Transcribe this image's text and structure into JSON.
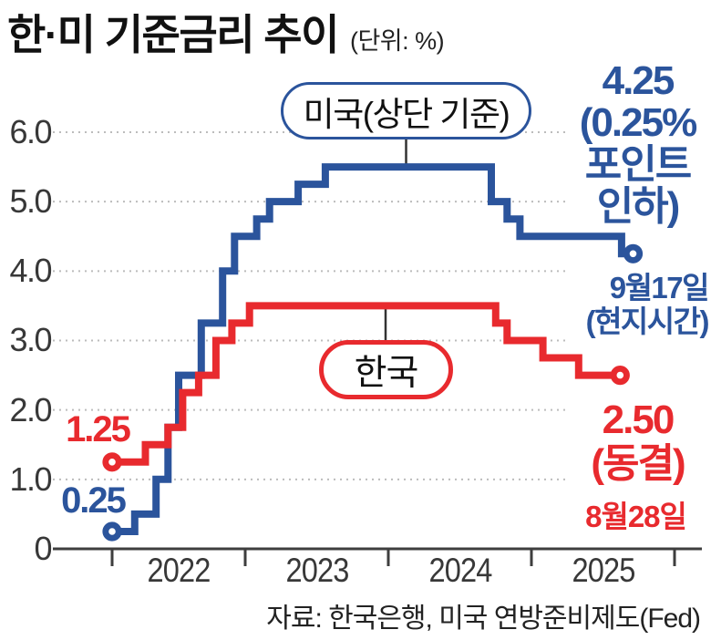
{
  "title": "한·미 기준금리 추이",
  "unit_label": "(단위: %)",
  "source": "자료: 한국은행, 미국 연방준비제도(Fed)",
  "colors": {
    "us": "#2b549c",
    "korea": "#e82a2e",
    "grid": "#bcbcbc",
    "axis": "#3e3e3e",
    "connector": "#333333"
  },
  "chart_data": {
    "type": "step-line",
    "title": "한·미 기준금리 추이",
    "unit": "%",
    "x_axis": {
      "tick_years": [
        2022,
        2023,
        2024,
        2025,
        2026
      ],
      "labels": [
        "2022",
        "2023",
        "2024",
        "2025"
      ]
    },
    "y_axis": {
      "ticks": [
        0,
        1,
        2,
        3,
        4,
        5,
        6
      ],
      "labels": [
        "0",
        "1.0",
        "2.0",
        "3.0",
        "4.0",
        "5.0",
        "6.0"
      ],
      "range": [
        0,
        6
      ]
    },
    "series": [
      {
        "name": "미국(상단 기준)",
        "color": "#2b549c",
        "points": [
          [
            2022.0,
            0.25
          ],
          [
            2022.17,
            0.5
          ],
          [
            2022.33,
            1.0
          ],
          [
            2022.42,
            1.75
          ],
          [
            2022.5,
            2.5
          ],
          [
            2022.67,
            3.25
          ],
          [
            2022.83,
            4.0
          ],
          [
            2022.92,
            4.5
          ],
          [
            2023.08,
            4.75
          ],
          [
            2023.17,
            5.0
          ],
          [
            2023.37,
            5.25
          ],
          [
            2023.56,
            5.5
          ],
          [
            2024.72,
            5.0
          ],
          [
            2024.83,
            4.75
          ],
          [
            2024.92,
            4.5
          ],
          [
            2025.63,
            4.25
          ]
        ],
        "end_t": 2025.71
      },
      {
        "name": "한국",
        "color": "#e82a2e",
        "points": [
          [
            2022.0,
            1.25
          ],
          [
            2022.25,
            1.5
          ],
          [
            2022.42,
            1.75
          ],
          [
            2022.53,
            2.25
          ],
          [
            2022.65,
            2.5
          ],
          [
            2022.78,
            3.0
          ],
          [
            2022.9,
            3.25
          ],
          [
            2023.03,
            3.5
          ],
          [
            2024.75,
            3.25
          ],
          [
            2024.83,
            3.0
          ],
          [
            2025.08,
            2.75
          ],
          [
            2025.33,
            2.5
          ]
        ],
        "end_t": 2025.62
      }
    ],
    "annotations": {
      "kr_start": "1.25",
      "us_start": "0.25",
      "us_end": {
        "rate": "4.25",
        "note_lines": [
          "(0.25%",
          "포인트",
          "인하)"
        ],
        "date_lines": [
          "9월17일",
          "(현지시간)"
        ]
      },
      "kr_end": {
        "rate": "2.50",
        "note": "(동결)",
        "date": "8월28일"
      }
    }
  }
}
